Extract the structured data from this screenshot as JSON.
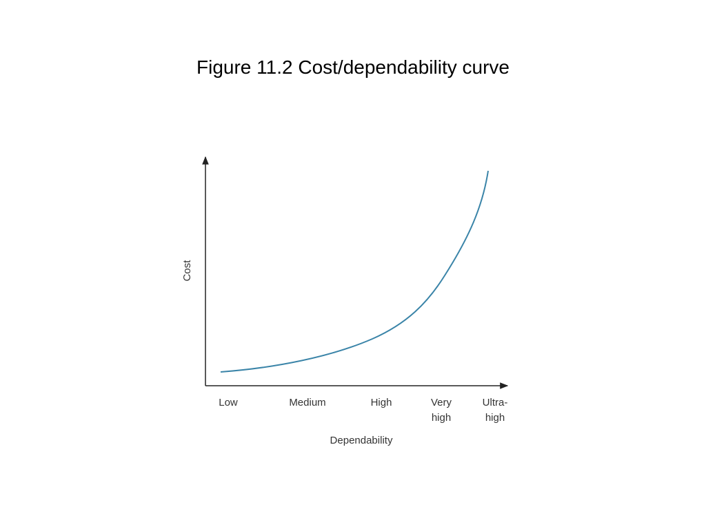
{
  "title": "Figure 11.2  Cost/dependability curve",
  "diagram": {
    "y_axis_label": "Cost",
    "x_axis_label": "Dependability",
    "x_categories": [
      [
        "Low"
      ],
      [
        "Medium"
      ],
      [
        "High"
      ],
      [
        "Very",
        "high"
      ],
      [
        "Ultra-",
        "high"
      ]
    ]
  }
}
